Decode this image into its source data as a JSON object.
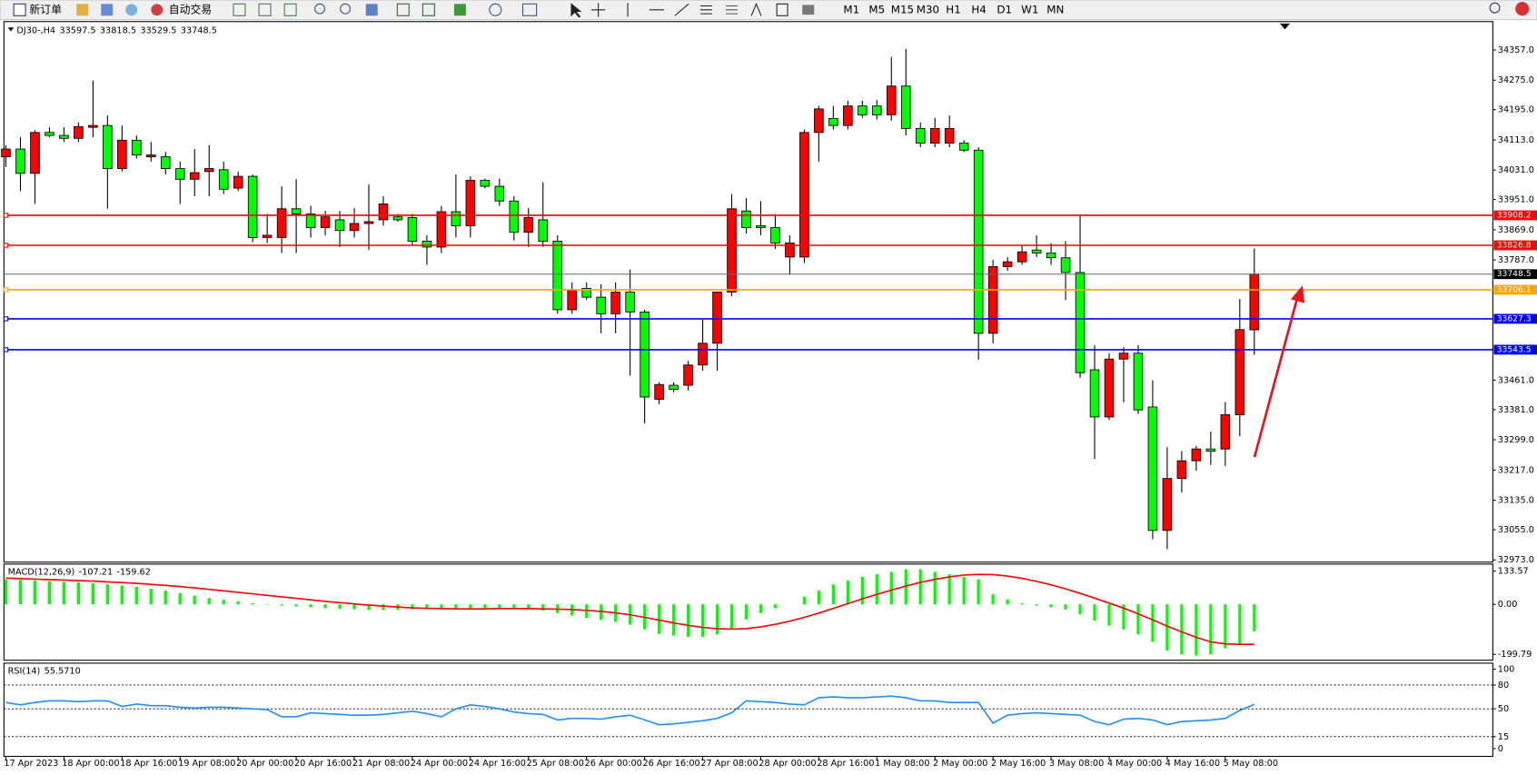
{
  "toolbar": {
    "buttons": [
      "新订单",
      "自动交易"
    ],
    "timeframes": [
      "M1",
      "M5",
      "M15",
      "M30",
      "H1",
      "H4",
      "D1",
      "W1",
      "MN"
    ]
  },
  "chart_data": [
    {
      "type": "candlestick",
      "title": "DJ30-,H4",
      "categories": [
        "17 Apr 2023",
        null,
        null,
        null,
        "18 Apr 00:00",
        null,
        null,
        null,
        "18 Apr 16:00",
        null,
        null,
        null,
        "19 Apr 08:00",
        null,
        null,
        null,
        "20 Apr 00:00",
        null,
        null,
        null,
        "20 Apr 16:00",
        null,
        null,
        null,
        "21 Apr 08:00",
        null,
        null,
        null,
        "24 Apr 00:00",
        null,
        null,
        null,
        "24 Apr 16:00",
        null,
        null,
        null,
        "25 Apr 08:00",
        null,
        null,
        null,
        "26 Apr 00:00",
        null,
        null,
        null,
        "26 Apr 16:00",
        null,
        null,
        null,
        "27 Apr 08:00",
        null,
        null,
        null,
        "28 Apr 00:00",
        null,
        null,
        null,
        "28 Apr 16:00",
        null,
        null,
        null,
        "1 May 08:00",
        null,
        null,
        null,
        "2 May 00:00",
        null,
        null,
        null,
        "2 May 16:00",
        null,
        null,
        null,
        "3 May 08:00",
        null,
        null,
        null,
        "4 May 00:00",
        null,
        null,
        null,
        "4 May 16:00",
        null,
        null,
        null,
        "5 May 08:00",
        null,
        null
      ],
      "ohlc": [
        [
          34067,
          34099,
          34040,
          34088
        ],
        [
          34088,
          34120,
          33974,
          34022
        ],
        [
          34022,
          34139,
          33939,
          34133
        ],
        [
          34133,
          34147,
          34120,
          34125
        ],
        [
          34125,
          34147,
          34107,
          34117
        ],
        [
          34117,
          34160,
          34107,
          34149
        ],
        [
          34147,
          34274,
          34120,
          34152
        ],
        [
          34152,
          34179,
          33926,
          34035
        ],
        [
          34035,
          34152,
          34027,
          34112
        ],
        [
          34112,
          34125,
          34062,
          34072
        ],
        [
          34067,
          34107,
          34054,
          34072
        ],
        [
          34067,
          34080,
          34019,
          34035
        ],
        [
          34035,
          34054,
          33939,
          34006
        ],
        [
          34006,
          34088,
          33960,
          34024
        ],
        [
          34027,
          34099,
          33960,
          34035
        ],
        [
          34032,
          34054,
          33966,
          33979
        ],
        [
          33982,
          34027,
          33974,
          34014
        ],
        [
          34014,
          34019,
          33835,
          33848
        ],
        [
          33848,
          33912,
          33833,
          33854
        ],
        [
          33848,
          33987,
          33806,
          33926
        ],
        [
          33926,
          34006,
          33806,
          33912
        ],
        [
          33912,
          33934,
          33848,
          33875
        ],
        [
          33875,
          33920,
          33854,
          33904
        ],
        [
          33896,
          33920,
          33822,
          33867
        ],
        [
          33867,
          33928,
          33848,
          33886
        ],
        [
          33886,
          33992,
          33814,
          33891
        ],
        [
          33896,
          33960,
          33880,
          33939
        ],
        [
          33904,
          33912,
          33891,
          33896
        ],
        [
          33902,
          33912,
          33827,
          33838
        ],
        [
          33838,
          33854,
          33774,
          33822
        ],
        [
          33822,
          33934,
          33806,
          33918
        ],
        [
          33918,
          34019,
          33848,
          33880
        ],
        [
          33880,
          34014,
          33848,
          34003
        ],
        [
          34003,
          34008,
          33982,
          33987
        ],
        [
          33987,
          34008,
          33934,
          33947
        ],
        [
          33947,
          33960,
          33840,
          33862
        ],
        [
          33862,
          33928,
          33822,
          33902
        ],
        [
          33896,
          33998,
          33822,
          33838
        ],
        [
          33838,
          33854,
          33641,
          33652
        ],
        [
          33652,
          33726,
          33641,
          33705
        ],
        [
          33710,
          33726,
          33678,
          33686
        ],
        [
          33686,
          33721,
          33588,
          33641
        ],
        [
          33641,
          33726,
          33588,
          33700
        ],
        [
          33700,
          33761,
          33473,
          33646
        ],
        [
          33646,
          33652,
          33343,
          33415
        ],
        [
          33409,
          33455,
          33396,
          33449
        ],
        [
          33447,
          33455,
          33428,
          33436
        ],
        [
          33447,
          33513,
          33433,
          33502
        ],
        [
          33502,
          33625,
          33486,
          33561
        ],
        [
          33561,
          33700,
          33486,
          33700
        ],
        [
          33700,
          33966,
          33689,
          33926
        ],
        [
          33920,
          33955,
          33859,
          33875
        ],
        [
          33880,
          33947,
          33854,
          33875
        ],
        [
          33875,
          33912,
          33817,
          33833
        ],
        [
          33795,
          33854,
          33747,
          33833
        ],
        [
          33795,
          34141,
          33779,
          34133
        ],
        [
          34133,
          34205,
          34054,
          34197
        ],
        [
          34171,
          34205,
          34141,
          34152
        ],
        [
          34152,
          34219,
          34141,
          34205
        ],
        [
          34205,
          34219,
          34173,
          34181
        ],
        [
          34205,
          34221,
          34168,
          34181
        ],
        [
          34181,
          34338,
          34165,
          34259
        ],
        [
          34259,
          34360,
          34125,
          34144
        ],
        [
          34144,
          34160,
          34093,
          34104
        ],
        [
          34104,
          34173,
          34093,
          34144
        ],
        [
          34104,
          34179,
          34093,
          34144
        ],
        [
          34104,
          34112,
          34080,
          34085
        ],
        [
          34085,
          34093,
          33516,
          33588
        ],
        [
          33588,
          33787,
          33561,
          33769
        ],
        [
          33769,
          33795,
          33758,
          33782
        ],
        [
          33782,
          33827,
          33774,
          33809
        ],
        [
          33814,
          33854,
          33795,
          33806
        ],
        [
          33806,
          33833,
          33774,
          33793
        ],
        [
          33793,
          33838,
          33678,
          33753
        ],
        [
          33753,
          33907,
          33467,
          33481
        ],
        [
          33489,
          33556,
          33247,
          33361
        ],
        [
          33361,
          33534,
          33353,
          33518
        ],
        [
          33518,
          33550,
          33401,
          33534
        ],
        [
          33534,
          33556,
          33369,
          33380
        ],
        [
          33388,
          33460,
          33029,
          33053
        ],
        [
          33053,
          33279,
          33002,
          33194
        ],
        [
          33194,
          33268,
          33156,
          33242
        ],
        [
          33242,
          33282,
          33215,
          33274
        ],
        [
          33274,
          33321,
          33231,
          33268
        ],
        [
          33274,
          33401,
          33228,
          33367
        ],
        [
          33367,
          33681,
          33308,
          33598
        ],
        [
          33597.5,
          33818.5,
          33529.5,
          33748.5
        ]
      ],
      "up_color": "#ff0000",
      "down_color": "#00ff00",
      "last_price_color": "#000000",
      "ylim": [
        32967,
        34426
      ],
      "yticks": [
        {
          "value": 34357,
          "label": "34357.0"
        },
        {
          "value": 34275,
          "label": "34275.0"
        },
        {
          "value": 34195,
          "label": "34195.0"
        },
        {
          "value": 34113,
          "label": "34113.0"
        },
        {
          "value": 34031,
          "label": "34031.0"
        },
        {
          "value": 33951,
          "label": "33951.0"
        },
        {
          "value": 33869,
          "label": "33869.0"
        },
        {
          "value": 33787,
          "label": "33787.0"
        },
        {
          "value": 33461,
          "label": "33461.0"
        },
        {
          "value": 33381,
          "label": "33381.0"
        },
        {
          "value": 33299,
          "label": "33299.0"
        },
        {
          "value": 33217,
          "label": "33217.0"
        },
        {
          "value": 33135,
          "label": "33135.0"
        },
        {
          "value": 33055,
          "label": "33055.0"
        },
        {
          "value": 32973,
          "label": "32973.0"
        }
      ],
      "levels": [
        {
          "value": 33908.2,
          "color": "#ff0000"
        },
        {
          "value": 33826.8,
          "color": "#ff0000"
        },
        {
          "value": 33706.1,
          "color": "#ffa500"
        },
        {
          "value": 33627.3,
          "color": "#0000ff"
        },
        {
          "value": 33543.5,
          "color": "#0000ff"
        }
      ]
    },
    {
      "type": "macd",
      "title": "MACD(12,26,9)",
      "color": "#00ff00",
      "signal_color": "#ff0000",
      "values": [
        100,
        98,
        95,
        93,
        90,
        88,
        85,
        80,
        75,
        70,
        62,
        55,
        45,
        35,
        25,
        18,
        12,
        5,
        -2,
        -5,
        -8,
        -12,
        -15,
        -18,
        -20,
        -22,
        -22,
        -22,
        -20,
        -18,
        -20,
        -18,
        -15,
        -15,
        -15,
        -18,
        -20,
        -25,
        -35,
        -45,
        -55,
        -62,
        -70,
        -80,
        -100,
        -118,
        -125,
        -130,
        -130,
        -120,
        -95,
        -60,
        -35,
        -15,
        0,
        30,
        55,
        80,
        95,
        110,
        120,
        130,
        140,
        140,
        130,
        120,
        110,
        100,
        40,
        20,
        5,
        -5,
        -12,
        -20,
        -40,
        -65,
        -85,
        -100,
        -120,
        -150,
        -185,
        -200,
        -205,
        -200,
        -175,
        -160,
        -107.21
      ],
      "signal": [
        105,
        103,
        101,
        99,
        97,
        95,
        93,
        90,
        87,
        84,
        80,
        76,
        71,
        66,
        60,
        54,
        48,
        42,
        36,
        30,
        24,
        18,
        12,
        7,
        2,
        -3,
        -7,
        -11,
        -14,
        -16,
        -17,
        -18,
        -18,
        -18,
        -17,
        -17,
        -17,
        -18,
        -19,
        -21,
        -24,
        -28,
        -34,
        -42,
        -52,
        -63,
        -74,
        -84,
        -92,
        -97,
        -99,
        -97,
        -90,
        -80,
        -67,
        -52,
        -35,
        -16,
        3,
        22,
        40,
        57,
        73,
        88,
        100,
        110,
        117,
        120,
        119,
        113,
        104,
        92,
        78,
        62,
        44,
        25,
        5,
        -15,
        -38,
        -62,
        -87,
        -110,
        -132,
        -150,
        -158,
        -160,
        -159.62
      ],
      "ylim": [
        -219.4,
        153.2
      ],
      "yticks": [
        133.57,
        {
          "value": 0,
          "label": "0.00"
        },
        -199.79
      ]
    },
    {
      "type": "rsi",
      "title": "RSI(14)",
      "color": "#1e90ff",
      "values": [
        58,
        55,
        58,
        60,
        60,
        59,
        60,
        60,
        53,
        56,
        54,
        54,
        52,
        51,
        52,
        52,
        51,
        50,
        49,
        40,
        40,
        45,
        44,
        43,
        42,
        42,
        43,
        45,
        47,
        44,
        40,
        50,
        55,
        53,
        50,
        46,
        44,
        43,
        36,
        38,
        38,
        37,
        40,
        42,
        36,
        30,
        31,
        33,
        35,
        38,
        45,
        60,
        59,
        58,
        56,
        55,
        64,
        65,
        64,
        64,
        65,
        66,
        64,
        60,
        60,
        58,
        58,
        58,
        32,
        42,
        44,
        45,
        44,
        43,
        42,
        34,
        30,
        37,
        38,
        36,
        30,
        34,
        35,
        36,
        38,
        48,
        55.571
      ],
      "value_labels": [
        null,
        null,
        null,
        null,
        null,
        null,
        null,
        null,
        null,
        null,
        null,
        null,
        null,
        null,
        null,
        null,
        null,
        null,
        null,
        null,
        null,
        null,
        null,
        null,
        null,
        null,
        null,
        null,
        null,
        null,
        null,
        null,
        null,
        null,
        null,
        null,
        null,
        null,
        null,
        null,
        null,
        null,
        null,
        null,
        null,
        null,
        null,
        null,
        null,
        null,
        null,
        null,
        null,
        null,
        null,
        null,
        null,
        null,
        null,
        null,
        null,
        null,
        null,
        null,
        null,
        null,
        null,
        null,
        null,
        null,
        null,
        null,
        null,
        null,
        null,
        null,
        null,
        null,
        null,
        null,
        null,
        null,
        null,
        null,
        null,
        null,
        "55.5710"
      ],
      "ylim": [
        -8.6,
        105
      ],
      "yticks": [
        100,
        80,
        50,
        15,
        0
      ],
      "levels": [
        80,
        50,
        15
      ]
    }
  ]
}
